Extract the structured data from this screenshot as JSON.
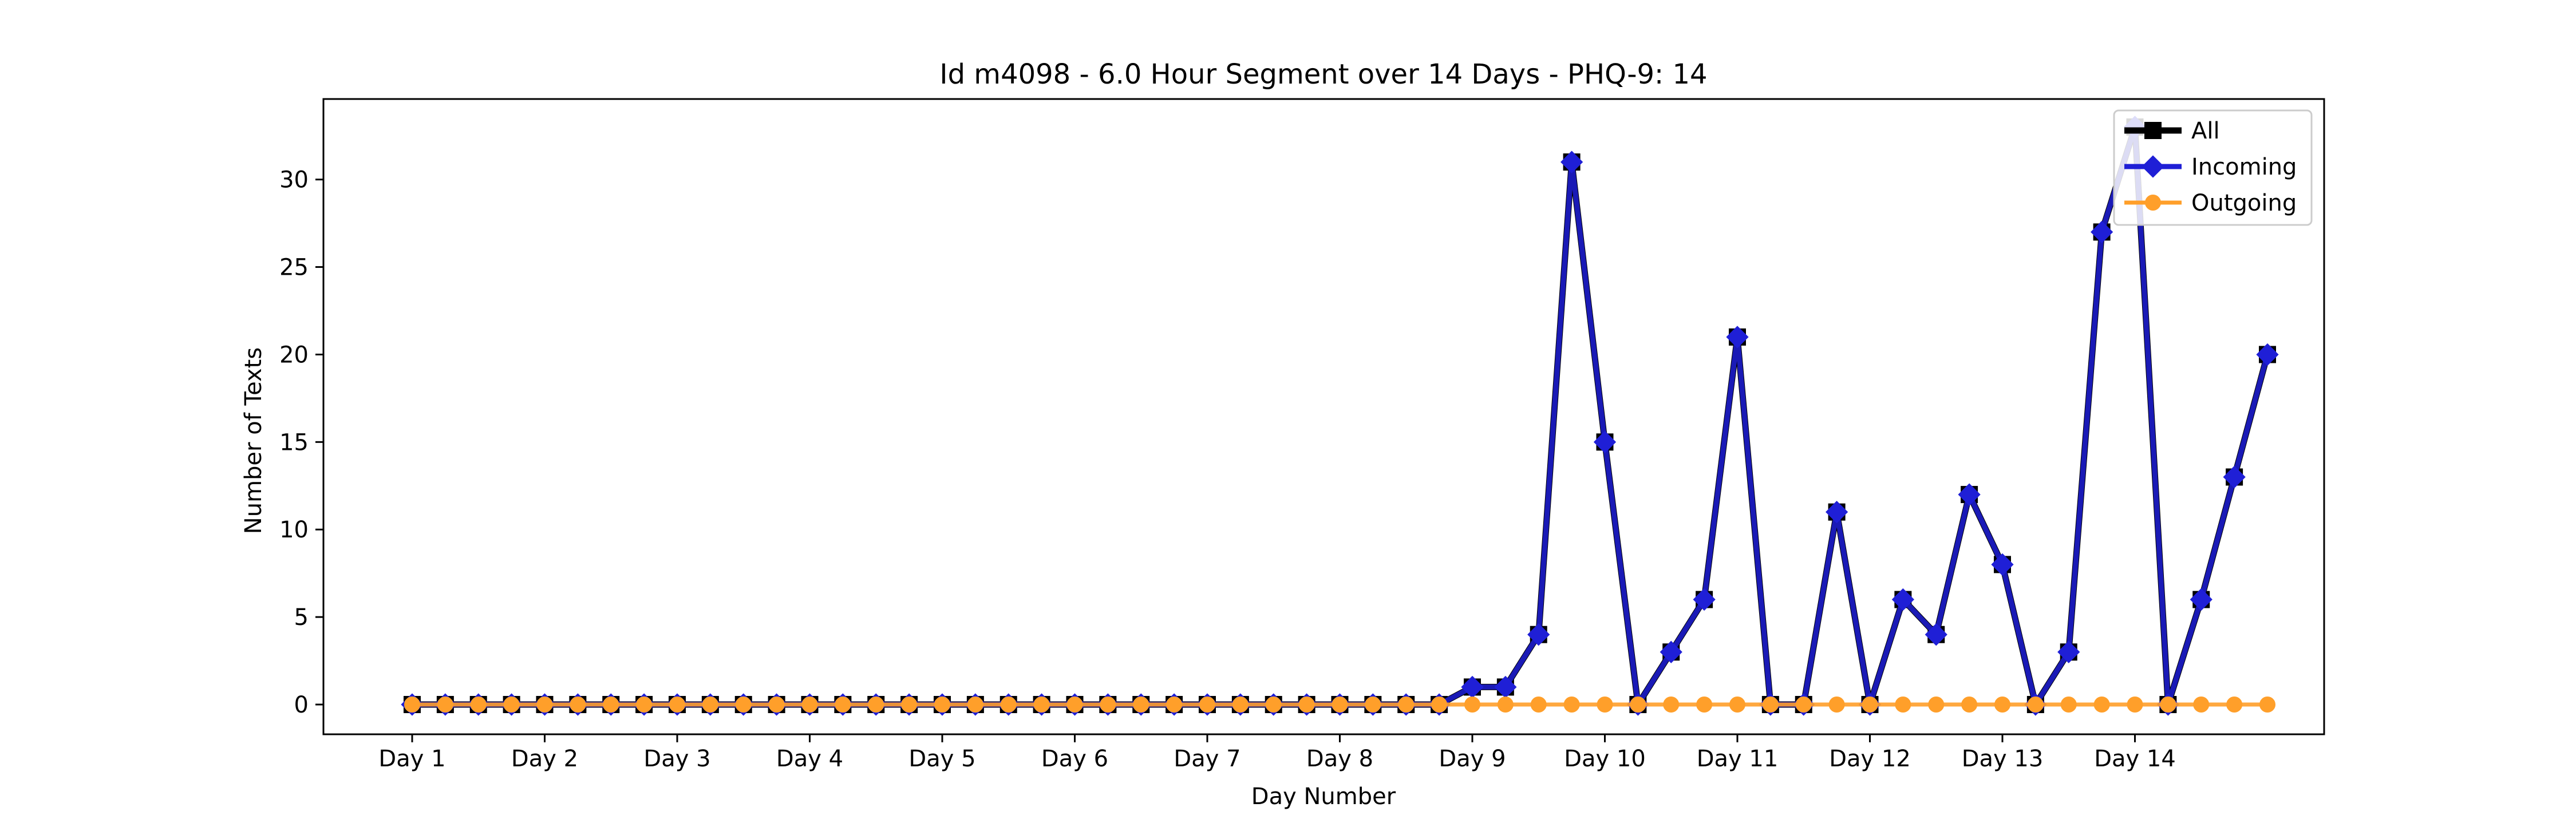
{
  "chart_data": {
    "type": "line",
    "title": "Id m4098 - 6.0 Hour Segment over 14 Days - PHQ-9: 14",
    "xlabel": "Day Number",
    "ylabel": "Number of Texts",
    "x_tick_labels": [
      "Day 1",
      "Day 2",
      "Day 3",
      "Day 4",
      "Day 5",
      "Day 6",
      "Day 7",
      "Day 8",
      "Day 9",
      "Day 10",
      "Day 11",
      "Day 12",
      "Day 13",
      "Day 14"
    ],
    "points_per_day": 4,
    "ylim": [
      -1.7,
      34.6
    ],
    "yticks": [
      0,
      5,
      10,
      15,
      20,
      25,
      30
    ],
    "grid": false,
    "legend_position": "top-right",
    "series": [
      {
        "name": "All",
        "color": "#000000",
        "marker": "square",
        "values": [
          0,
          0,
          0,
          0,
          0,
          0,
          0,
          0,
          0,
          0,
          0,
          0,
          0,
          0,
          0,
          0,
          0,
          0,
          0,
          0,
          0,
          0,
          0,
          0,
          0,
          0,
          0,
          0,
          0,
          0,
          0,
          0,
          1,
          1,
          4,
          31,
          15,
          0,
          3,
          6,
          21,
          0,
          0,
          11,
          0,
          6,
          4,
          12,
          8,
          0,
          3,
          27,
          33,
          0,
          6,
          13,
          20
        ]
      },
      {
        "name": "Incoming",
        "color": "#1f1fd6",
        "marker": "diamond",
        "values": [
          0,
          0,
          0,
          0,
          0,
          0,
          0,
          0,
          0,
          0,
          0,
          0,
          0,
          0,
          0,
          0,
          0,
          0,
          0,
          0,
          0,
          0,
          0,
          0,
          0,
          0,
          0,
          0,
          0,
          0,
          0,
          0,
          1,
          1,
          4,
          31,
          15,
          0,
          3,
          6,
          21,
          0,
          0,
          11,
          0,
          6,
          4,
          12,
          8,
          0,
          3,
          27,
          33,
          0,
          6,
          13,
          20
        ]
      },
      {
        "name": "Outgoing",
        "color": "#ff9f2a",
        "marker": "circle",
        "values": [
          0,
          0,
          0,
          0,
          0,
          0,
          0,
          0,
          0,
          0,
          0,
          0,
          0,
          0,
          0,
          0,
          0,
          0,
          0,
          0,
          0,
          0,
          0,
          0,
          0,
          0,
          0,
          0,
          0,
          0,
          0,
          0,
          0,
          0,
          0,
          0,
          0,
          0,
          0,
          0,
          0,
          0,
          0,
          0,
          0,
          0,
          0,
          0,
          0,
          0,
          0,
          0,
          0,
          0,
          0,
          0,
          0
        ]
      }
    ]
  }
}
